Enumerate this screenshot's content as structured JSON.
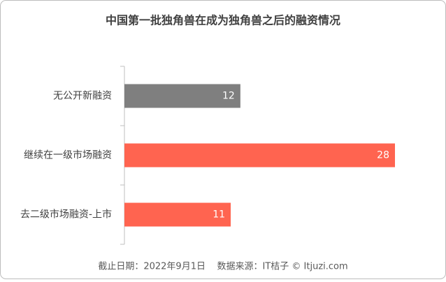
{
  "chart_data": {
    "type": "hbar",
    "title": "中国第一批独角兽在成为独角兽之后的融资情况",
    "categories": [
      "无公开新融资",
      "继续在一级市场融资",
      "去二级市场融资-上市"
    ],
    "values": [
      12,
      28,
      11
    ],
    "colors": [
      "#7f7f7f",
      "#ff6450",
      "#ff6450"
    ],
    "source": "截止日期：2022年9月1日    数据来源：IT桔子 © Itjuzi.com"
  }
}
